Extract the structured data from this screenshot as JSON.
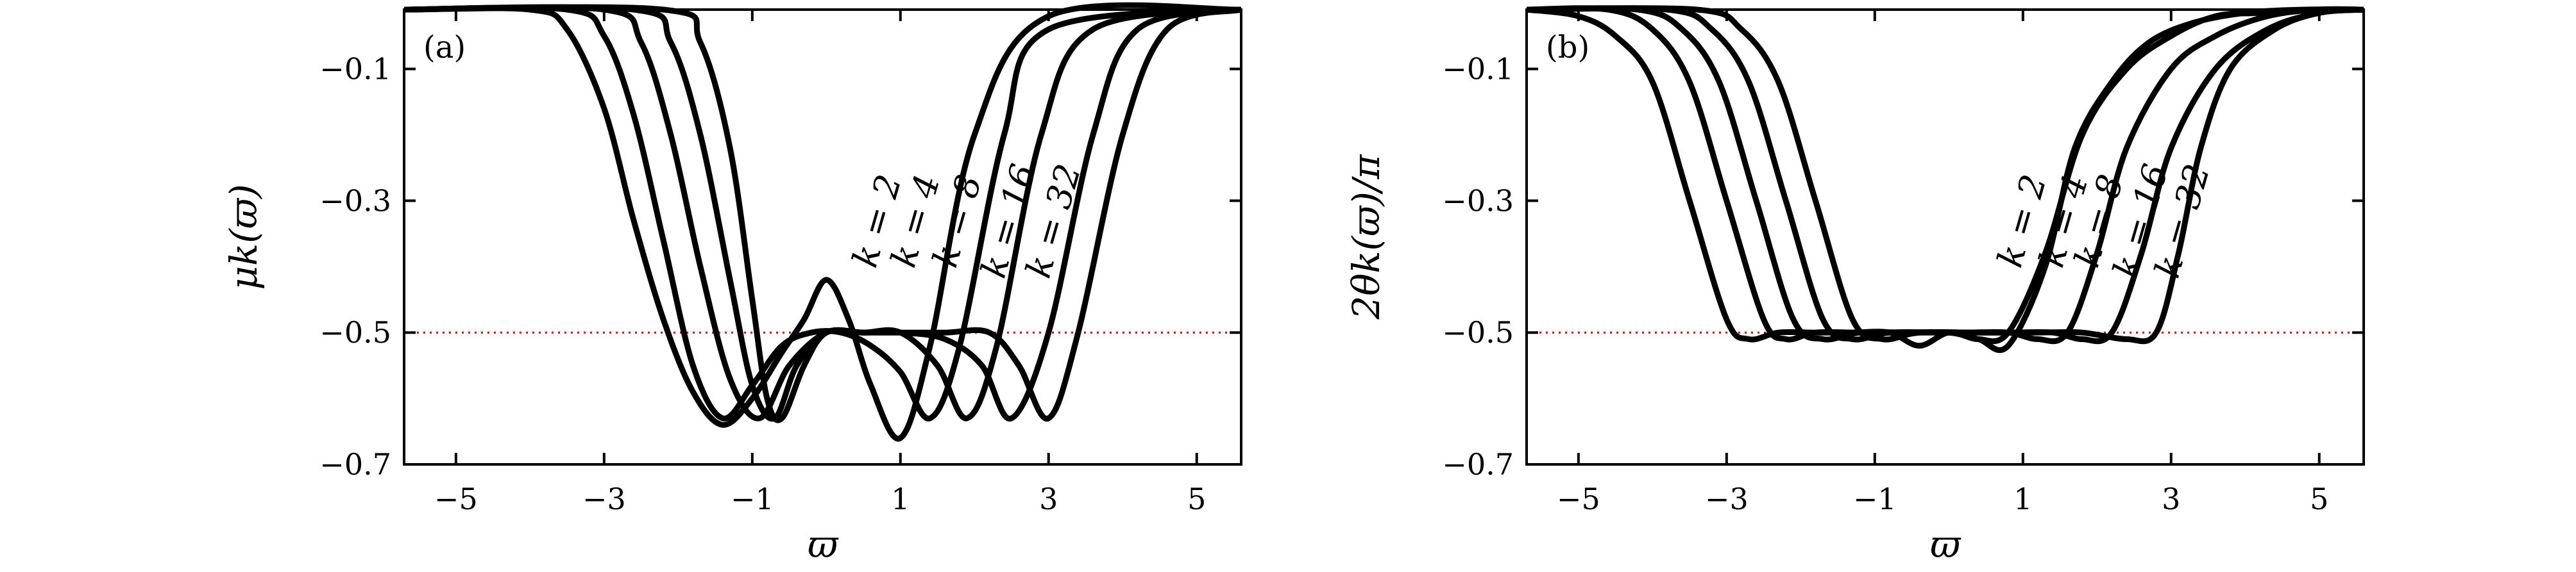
{
  "chart_data": [
    {
      "type": "line",
      "panel_label": "(a)",
      "xlabel": "ϖ",
      "ylabel": "μk(ϖ)",
      "xlim": [
        -5.7,
        5.6
      ],
      "ylim": [
        -0.7,
        -0.01
      ],
      "xticks": [
        -5,
        -3,
        -1,
        1,
        3,
        5
      ],
      "xtick_labels": [
        "−5",
        "−3",
        "−1",
        "1",
        "3",
        "5"
      ],
      "yticks": [
        -0.1,
        -0.3,
        -0.5,
        -0.7
      ],
      "ytick_labels": [
        "−0.1",
        "−0.3",
        "−0.5",
        "−0.7"
      ],
      "reference_line": {
        "y": -0.5,
        "color": "#cc0000",
        "style": "dotted"
      },
      "curve_color": "#000000",
      "series": [
        {
          "name": "k = 2",
          "x": [
            -5.7,
            -4.0,
            -3.5,
            -3.0,
            -2.6,
            -2.2,
            -1.8,
            -1.4,
            -1.0,
            -0.6,
            -0.3,
            0.0,
            0.3,
            0.6,
            1.0,
            1.4,
            2.0,
            3.0,
            5.6
          ],
          "y": [
            -0.01,
            -0.01,
            -0.04,
            -0.16,
            -0.33,
            -0.48,
            -0.59,
            -0.64,
            -0.6,
            -0.53,
            -0.48,
            -0.42,
            -0.48,
            -0.58,
            -0.66,
            -0.52,
            -0.2,
            -0.02,
            -0.01
          ]
        },
        {
          "name": "k = 4",
          "x": [
            -5.7,
            -3.5,
            -3.0,
            -2.6,
            -2.2,
            -1.8,
            -1.4,
            -1.0,
            -0.6,
            -0.2,
            0.2,
            0.6,
            1.0,
            1.4,
            1.8,
            2.4,
            3.0,
            5.6
          ],
          "y": [
            -0.01,
            -0.01,
            -0.05,
            -0.17,
            -0.36,
            -0.55,
            -0.63,
            -0.58,
            -0.52,
            -0.5,
            -0.5,
            -0.52,
            -0.56,
            -0.63,
            -0.52,
            -0.2,
            -0.04,
            -0.01
          ]
        },
        {
          "name": "k = 8",
          "x": [
            -5.7,
            -3.0,
            -2.5,
            -2.1,
            -1.7,
            -1.3,
            -0.9,
            -0.5,
            0.0,
            0.5,
            1.0,
            1.5,
            1.9,
            2.3,
            2.9,
            3.6,
            5.6
          ],
          "y": [
            -0.01,
            -0.01,
            -0.06,
            -0.2,
            -0.4,
            -0.57,
            -0.63,
            -0.55,
            -0.5,
            -0.5,
            -0.5,
            -0.55,
            -0.63,
            -0.52,
            -0.2,
            -0.04,
            -0.01
          ]
        },
        {
          "name": "k = 16",
          "x": [
            -5.7,
            -2.6,
            -2.1,
            -1.7,
            -1.3,
            -1.0,
            -0.7,
            -0.4,
            0.0,
            0.5,
            1.0,
            1.6,
            2.1,
            2.5,
            3.0,
            3.6,
            4.2,
            5.6
          ],
          "y": [
            -0.01,
            -0.01,
            -0.06,
            -0.2,
            -0.42,
            -0.58,
            -0.63,
            -0.55,
            -0.5,
            -0.5,
            -0.5,
            -0.51,
            -0.55,
            -0.63,
            -0.5,
            -0.2,
            -0.04,
            -0.01
          ]
        },
        {
          "name": "k = 32",
          "x": [
            -5.7,
            -2.2,
            -1.7,
            -1.3,
            -1.0,
            -0.8,
            -0.6,
            -0.3,
            0.0,
            0.5,
            1.0,
            1.6,
            2.2,
            2.6,
            3.0,
            3.4,
            4.0,
            4.6,
            5.6
          ],
          "y": [
            -0.01,
            -0.01,
            -0.06,
            -0.22,
            -0.45,
            -0.6,
            -0.63,
            -0.55,
            -0.5,
            -0.5,
            -0.5,
            -0.5,
            -0.5,
            -0.55,
            -0.63,
            -0.5,
            -0.2,
            -0.04,
            -0.01
          ]
        }
      ]
    },
    {
      "type": "line",
      "panel_label": "(b)",
      "xlabel": "ϖ",
      "ylabel": "2θk(ϖ)/π",
      "xlim": [
        -5.7,
        5.6
      ],
      "ylim": [
        -0.7,
        -0.01
      ],
      "xticks": [
        -5,
        -3,
        -1,
        1,
        3,
        5
      ],
      "xtick_labels": [
        "−5",
        "−3",
        "−1",
        "1",
        "3",
        "5"
      ],
      "yticks": [
        -0.1,
        -0.3,
        -0.5,
        -0.7
      ],
      "ytick_labels": [
        "−0.1",
        "−0.3",
        "−0.5",
        "−0.7"
      ],
      "reference_line": {
        "y": -0.5,
        "color": "#cc0000",
        "style": "dotted"
      },
      "curve_color": "#000000",
      "series": [
        {
          "name": "k = 2",
          "x": [
            -5.7,
            -5.0,
            -4.5,
            -4.0,
            -3.5,
            -3.0,
            -2.7,
            -2.3,
            -1.8,
            -1.3,
            -0.8,
            -0.4,
            0.0,
            0.4,
            0.8,
            1.3,
            1.8,
            2.4,
            3.0,
            3.6,
            4.2,
            5.0,
            5.6
          ],
          "y": [
            -0.01,
            -0.02,
            -0.05,
            -0.12,
            -0.3,
            -0.48,
            -0.51,
            -0.5,
            -0.5,
            -0.5,
            -0.5,
            -0.52,
            -0.5,
            -0.51,
            -0.5,
            -0.38,
            -0.2,
            -0.1,
            -0.05,
            -0.02,
            -0.015,
            -0.01,
            -0.01
          ]
        },
        {
          "name": "k = 4",
          "x": [
            -5.7,
            -4.6,
            -4.0,
            -3.5,
            -3.0,
            -2.5,
            -2.2,
            -1.8,
            -1.2,
            -0.6,
            0.0,
            0.4,
            0.8,
            1.3,
            1.7,
            2.2,
            2.7,
            3.3,
            4.0,
            4.8,
            5.6
          ],
          "y": [
            -0.01,
            -0.01,
            -0.04,
            -0.12,
            -0.3,
            -0.48,
            -0.51,
            -0.5,
            -0.5,
            -0.5,
            -0.5,
            -0.51,
            -0.52,
            -0.4,
            -0.22,
            -0.12,
            -0.06,
            -0.03,
            -0.015,
            -0.01,
            -0.01
          ]
        },
        {
          "name": "k = 8",
          "x": [
            -5.7,
            -4.2,
            -3.6,
            -3.1,
            -2.6,
            -2.1,
            -1.7,
            -1.2,
            -0.5,
            0.2,
            0.8,
            1.2,
            1.6,
            2.0,
            2.4,
            3.0,
            3.6,
            4.3,
            5.0,
            5.6
          ],
          "y": [
            -0.01,
            -0.01,
            -0.04,
            -0.12,
            -0.3,
            -0.48,
            -0.51,
            -0.5,
            -0.5,
            -0.5,
            -0.5,
            -0.51,
            -0.5,
            -0.38,
            -0.22,
            -0.1,
            -0.05,
            -0.02,
            -0.01,
            -0.01
          ]
        },
        {
          "name": "k = 16",
          "x": [
            -5.7,
            -3.8,
            -3.2,
            -2.7,
            -2.2,
            -1.7,
            -1.3,
            -0.8,
            0.0,
            0.8,
            1.4,
            1.8,
            2.2,
            2.6,
            3.0,
            3.6,
            4.3,
            5.0,
            5.6
          ],
          "y": [
            -0.01,
            -0.01,
            -0.04,
            -0.12,
            -0.3,
            -0.48,
            -0.51,
            -0.5,
            -0.5,
            -0.5,
            -0.5,
            -0.51,
            -0.5,
            -0.38,
            -0.22,
            -0.1,
            -0.04,
            -0.015,
            -0.01
          ]
        },
        {
          "name": "k = 32",
          "x": [
            -5.7,
            -3.4,
            -2.8,
            -2.3,
            -1.8,
            -1.3,
            -0.9,
            -0.4,
            0.4,
            1.2,
            1.8,
            2.4,
            2.8,
            3.1,
            3.4,
            3.8,
            4.4,
            5.0,
            5.6
          ],
          "y": [
            -0.01,
            -0.01,
            -0.04,
            -0.12,
            -0.3,
            -0.48,
            -0.51,
            -0.5,
            -0.5,
            -0.5,
            -0.5,
            -0.51,
            -0.5,
            -0.38,
            -0.22,
            -0.1,
            -0.04,
            -0.015,
            -0.01
          ]
        }
      ]
    }
  ]
}
